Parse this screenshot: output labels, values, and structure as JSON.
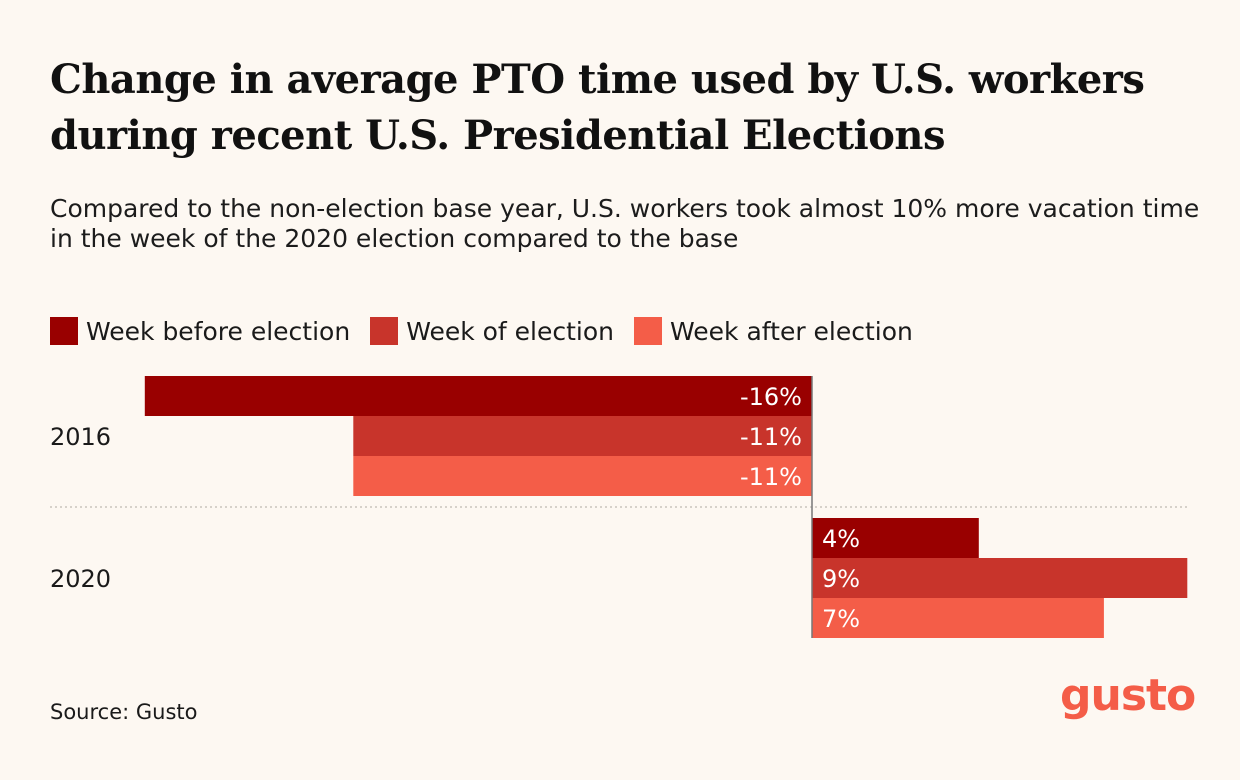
{
  "title": "Change in average PTO time used by U.S. workers during recent U.S. Presidential Elections",
  "subtitle": "Compared to the non-election base year, U.S. workers took almost 10% more vacation time in the week of the 2020 election compared to the base",
  "source": "Source: Gusto",
  "logo_text": "gusto",
  "colors": {
    "week_before": "#990000",
    "week_of": "#c8342b",
    "week_after": "#f45d48",
    "background": "#fdf8f2"
  },
  "chart_data": {
    "type": "bar",
    "orientation": "horizontal",
    "categories": [
      "2016",
      "2020"
    ],
    "series": [
      {
        "name": "Week before election",
        "values": [
          -16,
          4
        ],
        "labels": [
          "-16%",
          "4%"
        ]
      },
      {
        "name": "Week of election",
        "values": [
          -11,
          9
        ],
        "labels": [
          "-11%",
          "9%"
        ]
      },
      {
        "name": "Week after election",
        "values": [
          -11,
          7
        ],
        "labels": [
          "-11%",
          "7%"
        ]
      }
    ],
    "xlim": [
      -16,
      9
    ],
    "unit": "%",
    "legend_position": "top-left",
    "grid": false
  }
}
